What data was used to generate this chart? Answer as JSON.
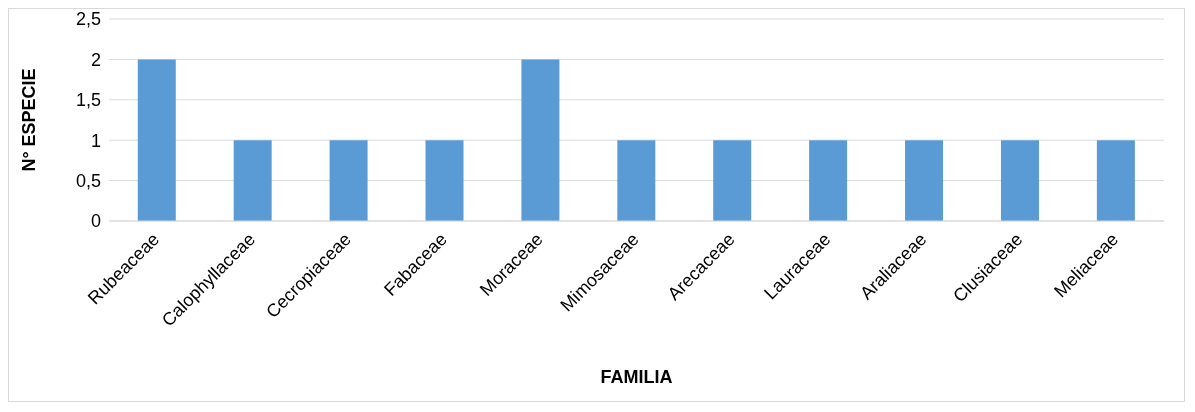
{
  "chart_data": {
    "type": "bar",
    "xlabel": "FAMILIA",
    "ylabel": "N° ESPECIE",
    "categories": [
      "Rubeaceae",
      "Calophyllaceae",
      "Cecropiaceae",
      "Fabaceae",
      "Moraceae",
      "Mimosaceae",
      "Arecaceae",
      "Lauraceae",
      "Araliaceae",
      "Clusiaceae",
      "Meliaceae"
    ],
    "values": [
      2,
      1,
      1,
      1,
      2,
      1,
      1,
      1,
      1,
      1,
      1
    ],
    "color": "#5b9bd5",
    "ylim": [
      0,
      2.5
    ],
    "yticks": [
      0,
      {
        "value": 0.5,
        "label": "0,5"
      },
      1,
      {
        "value": 1.5,
        "label": "1,5"
      },
      2,
      {
        "value": 2.5,
        "label": "2,5"
      }
    ],
    "grid": "y",
    "legend": false
  }
}
